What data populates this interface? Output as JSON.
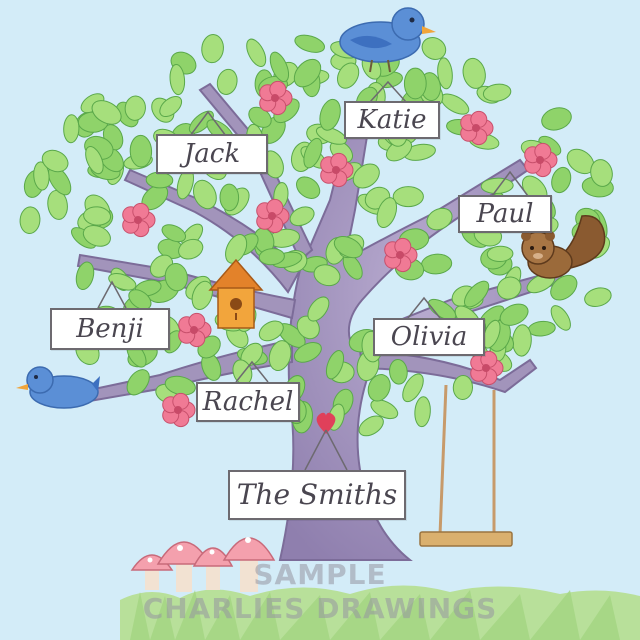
{
  "family_tree": {
    "family_name": "The Smiths",
    "members": [
      "Jack",
      "Katie",
      "Paul",
      "Benji",
      "Olivia",
      "Rachel"
    ]
  },
  "watermark": {
    "line1": "SAMPLE",
    "line2": "CHARLIES DRAWINGS"
  },
  "colors": {
    "sky": "#d3ecf8",
    "trunk": "#a99bbf",
    "leaf": "#8fd36a",
    "flower": "#f07a95",
    "bird": "#5b8fd6",
    "grass": "#a9d98a"
  }
}
